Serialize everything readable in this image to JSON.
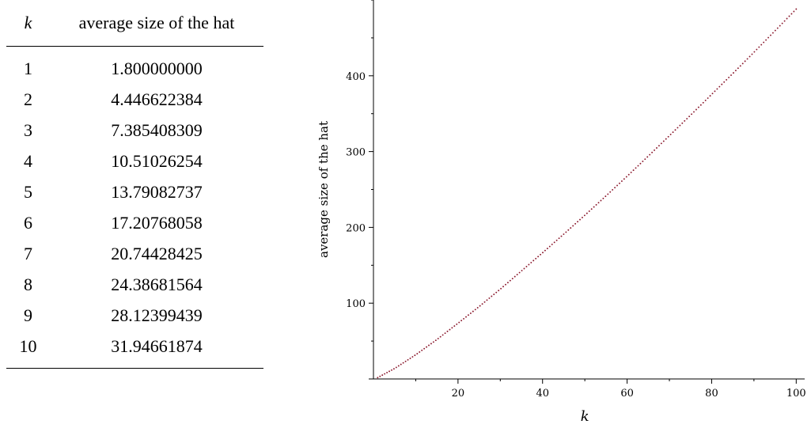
{
  "table": {
    "headers": {
      "k": "k",
      "value": "average size of the hat"
    },
    "rows": [
      {
        "k": "1",
        "value": "1.800000000"
      },
      {
        "k": "2",
        "value": "4.446622384"
      },
      {
        "k": "3",
        "value": "7.385408309"
      },
      {
        "k": "4",
        "value": "10.51026254"
      },
      {
        "k": "5",
        "value": "13.79082737"
      },
      {
        "k": "6",
        "value": "17.20768058"
      },
      {
        "k": "7",
        "value": "20.74428425"
      },
      {
        "k": "8",
        "value": "24.38681564"
      },
      {
        "k": "9",
        "value": "28.12399439"
      },
      {
        "k": "10",
        "value": "31.94661874"
      }
    ]
  },
  "chart_data": {
    "type": "scatter",
    "style": "dotted-line",
    "color": "#8b1a2e",
    "xlabel": "k",
    "ylabel": "average size of the hat",
    "xlim": [
      0,
      102
    ],
    "ylim": [
      0,
      500
    ],
    "xticks": [
      20,
      40,
      60,
      80,
      100
    ],
    "yticks": [
      100,
      200,
      300,
      400
    ],
    "x_minor_step": 10,
    "y_minor_step": 50,
    "x": [
      1,
      5,
      10,
      15,
      20,
      25,
      30,
      35,
      40,
      45,
      50,
      55,
      60,
      65,
      70,
      75,
      80,
      85,
      90,
      95,
      100
    ],
    "y": [
      1.8,
      13.8,
      31.9,
      52.0,
      73.5,
      95.5,
      118.5,
      142.5,
      166.5,
      191,
      216,
      241.5,
      267.5,
      294,
      321,
      348,
      375.5,
      403,
      431,
      459.5,
      488
    ]
  }
}
